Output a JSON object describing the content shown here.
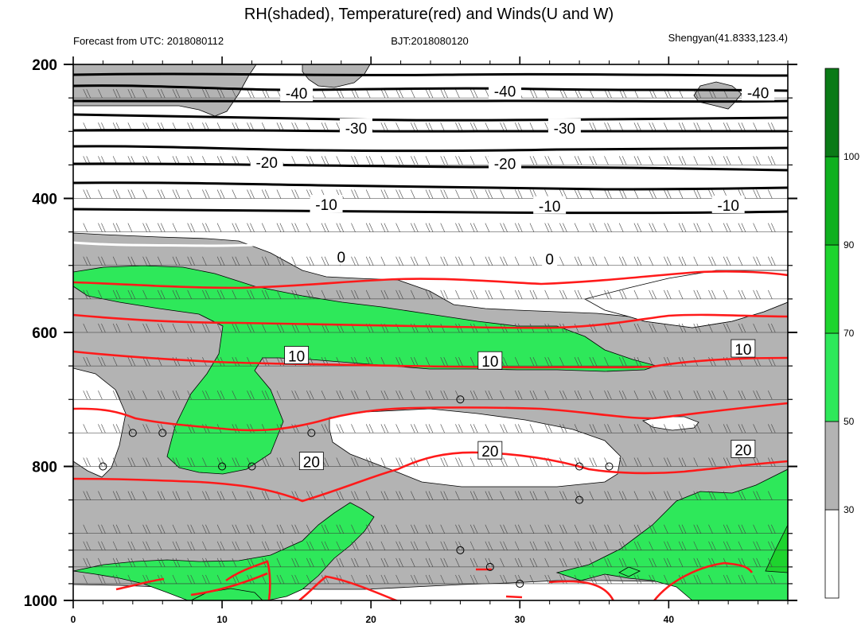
{
  "chart_data": {
    "type": "time-height cross section (filled contour + contour lines + wind barbs)",
    "title": "RH(shaded), Temperature(red) and Winds(U and W)",
    "subtitle_left": "Forecast from UTC: 2018080112",
    "subtitle_center": "BJT:2018080120",
    "subtitle_right": "Shengyan(41.8333,123.4)",
    "x_axis": {
      "range": [
        0,
        48
      ],
      "ticks": [
        0,
        10,
        20,
        30,
        40
      ],
      "tick_labels": [
        "0",
        "10",
        "20",
        "30",
        "40"
      ]
    },
    "y_axis": {
      "range": [
        200,
        1000
      ],
      "reversed": true,
      "ticks": [
        200,
        400,
        600,
        800,
        1000
      ],
      "tick_labels": [
        "200",
        "400",
        "600",
        "800",
        "1000"
      ],
      "minor_levels": [
        250,
        300,
        350,
        450,
        500,
        550,
        650,
        700,
        750,
        850,
        900,
        925,
        950,
        975
      ]
    },
    "colorbar": {
      "levels": [
        30,
        50,
        70,
        90,
        100
      ],
      "labels": [
        "30",
        "50",
        "70",
        "90",
        "100"
      ],
      "colors": [
        "#ffffff",
        "#b3b3b3",
        "#2ee85a",
        "#1ed42e",
        "#0fb01f",
        "#0a7a16"
      ]
    },
    "rh_colors": {
      "dry": "#ffffff",
      "moist": "#b3b3b3",
      "humid": "#2ee85a",
      "very_humid": "#1ed42e"
    },
    "temperature_labels": [
      {
        "text": "10",
        "x": 15,
        "y": 635
      },
      {
        "text": "10",
        "x": 28,
        "y": 643
      },
      {
        "text": "10",
        "x": 45,
        "y": 625
      },
      {
        "text": "20",
        "x": 16,
        "y": 793
      },
      {
        "text": "20",
        "x": 28,
        "y": 777
      },
      {
        "text": "20",
        "x": 45,
        "y": 775
      }
    ],
    "below_zero_labels": [
      {
        "text": "-40",
        "x": 15,
        "y": 243
      },
      {
        "text": "-40",
        "x": 29,
        "y": 240
      },
      {
        "text": "-40",
        "x": 46,
        "y": 242
      },
      {
        "text": "-30",
        "x": 19,
        "y": 295
      },
      {
        "text": "-30",
        "x": 33,
        "y": 295
      },
      {
        "text": "-20",
        "x": 13,
        "y": 346
      },
      {
        "text": "-20",
        "x": 29,
        "y": 348
      },
      {
        "text": "-10",
        "x": 17,
        "y": 409
      },
      {
        "text": "-10",
        "x": 32,
        "y": 411
      },
      {
        "text": "-10",
        "x": 44,
        "y": 410
      },
      {
        "text": "0",
        "x": 18,
        "y": 487
      },
      {
        "text": "0",
        "x": 32,
        "y": 490
      }
    ],
    "calm_markers": [
      {
        "x": 2,
        "y": 800
      },
      {
        "x": 4,
        "y": 750
      },
      {
        "x": 6,
        "y": 750
      },
      {
        "x": 10,
        "y": 800
      },
      {
        "x": 12,
        "y": 800
      },
      {
        "x": 16,
        "y": 750
      },
      {
        "x": 26,
        "y": 700
      },
      {
        "x": 34,
        "y": 800
      },
      {
        "x": 36,
        "y": 800
      },
      {
        "x": 34,
        "y": 850
      },
      {
        "x": 26,
        "y": 925
      },
      {
        "x": 28,
        "y": 950
      },
      {
        "x": 30,
        "y": 975
      }
    ]
  }
}
